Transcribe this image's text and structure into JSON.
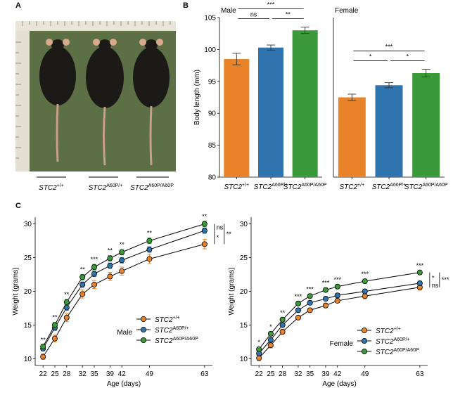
{
  "panels": {
    "a": "A",
    "b": "B",
    "c": "C"
  },
  "panel_a": {
    "description_labels": [
      "STC2+/+",
      "STC2A60P/+",
      "STC2A60P/A60P"
    ],
    "genotype_labels": [
      {
        "gene": "STC2",
        "sup": "+/+"
      },
      {
        "gene": "STC2",
        "sup": "A60P/+"
      },
      {
        "gene": "STC2",
        "sup": "A60P/A60P"
      }
    ],
    "colors": {
      "background": "#5c6f45",
      "fur": "#1c1a17",
      "tail": "#c9a08c",
      "ruler": "#e8e4d8"
    }
  },
  "colors": {
    "wt": "#e8832a",
    "het": "#2f74ad",
    "hom": "#3a9a3a",
    "axis": "#000000"
  },
  "chart_data": [
    {
      "id": "B-male",
      "type": "bar",
      "title": "Male",
      "ylabel": "Body length (mm)",
      "ylim": [
        80,
        105
      ],
      "yticks": [
        80,
        85,
        90,
        95,
        100,
        105
      ],
      "categories": [
        {
          "gene": "STC2",
          "sup": "+/+"
        },
        {
          "gene": "STC2",
          "sup": "A60P/+"
        },
        {
          "gene": "STC2",
          "sup": "A60P/A60P"
        }
      ],
      "values": [
        98.5,
        100.3,
        103.0
      ],
      "errors": [
        0.9,
        0.4,
        0.5
      ],
      "significance": [
        {
          "from": 0,
          "to": 1,
          "label": "ns",
          "level": 1
        },
        {
          "from": 1,
          "to": 2,
          "label": "**",
          "level": 1
        },
        {
          "from": 0,
          "to": 2,
          "label": "***",
          "level": 2
        }
      ]
    },
    {
      "id": "B-female",
      "type": "bar",
      "title": "Female",
      "ylim": [
        80,
        105
      ],
      "categories": [
        {
          "gene": "STC2",
          "sup": "+/+"
        },
        {
          "gene": "STC2",
          "sup": "A60P/+"
        },
        {
          "gene": "STC2",
          "sup": "A60P/A60P"
        }
      ],
      "values": [
        92.5,
        94.4,
        96.3
      ],
      "errors": [
        0.5,
        0.4,
        0.6
      ],
      "significance": [
        {
          "from": 0,
          "to": 1,
          "label": "*",
          "level": 1
        },
        {
          "from": 1,
          "to": 2,
          "label": "*",
          "level": 1
        },
        {
          "from": 0,
          "to": 2,
          "label": "***",
          "level": 2
        }
      ]
    },
    {
      "id": "C-male",
      "type": "line",
      "xlabel": "Age (days)",
      "ylabel": "Weight (grams)",
      "x": [
        22,
        25,
        28,
        32,
        35,
        39,
        42,
        49,
        63
      ],
      "xlim": [
        20,
        65
      ],
      "ylim": [
        9,
        31
      ],
      "yticks": [
        10,
        15,
        20,
        25,
        30
      ],
      "legend_title": "Male",
      "series": [
        {
          "name": "STC2",
          "sup": "+/+",
          "values": [
            10.3,
            13.0,
            16.1,
            19.6,
            21.0,
            22.2,
            23.0,
            24.8,
            27.0
          ],
          "errors": [
            0.4,
            0.5,
            0.6,
            0.6,
            0.6,
            0.6,
            0.6,
            0.7,
            0.7
          ]
        },
        {
          "name": "STC2",
          "sup": "A60P/+",
          "values": [
            11.5,
            14.6,
            17.6,
            21.0,
            22.6,
            23.8,
            24.6,
            26.2,
            29.0
          ],
          "errors": [
            0.3,
            0.4,
            0.4,
            0.4,
            0.4,
            0.4,
            0.4,
            0.4,
            0.4
          ]
        },
        {
          "name": "STC2",
          "sup": "A60P/A60P",
          "values": [
            11.8,
            15.0,
            18.4,
            22.1,
            23.6,
            24.9,
            25.8,
            27.5,
            30.0
          ],
          "errors": [
            0.3,
            0.4,
            0.4,
            0.4,
            0.4,
            0.4,
            0.4,
            0.4,
            0.4
          ]
        }
      ],
      "point_labels": [
        "**",
        "**",
        "**",
        "**",
        "***",
        "**",
        "**",
        "**",
        "**"
      ],
      "brackets": [
        {
          "from": 2,
          "to": 1,
          "label": "ns",
          "level": 1
        },
        {
          "from": 1,
          "to": 0,
          "label": "*",
          "level": 1
        },
        {
          "from": 2,
          "to": 0,
          "label": "**",
          "level": 2
        }
      ]
    },
    {
      "id": "C-female",
      "type": "line",
      "xlabel": "Age (days)",
      "ylabel": "Weight (grams)",
      "x": [
        22,
        25,
        28,
        32,
        35,
        39,
        42,
        49,
        63
      ],
      "xlim": [
        20,
        65
      ],
      "ylim": [
        9,
        31
      ],
      "yticks": [
        10,
        15,
        20,
        25,
        30
      ],
      "legend_title": "Female",
      "series": [
        {
          "name": "STC2",
          "sup": "+/+",
          "values": [
            10.1,
            12.0,
            14.0,
            16.1,
            17.2,
            17.9,
            18.6,
            19.3,
            20.6
          ],
          "errors": [
            0.4,
            0.4,
            0.4,
            0.3,
            0.3,
            0.3,
            0.3,
            0.4,
            0.4
          ]
        },
        {
          "name": "STC2",
          "sup": "A60P/+",
          "values": [
            10.8,
            12.8,
            15.0,
            17.2,
            18.3,
            18.9,
            19.4,
            20.0,
            21.2
          ],
          "errors": [
            0.3,
            0.3,
            0.3,
            0.3,
            0.3,
            0.3,
            0.3,
            0.3,
            0.3
          ]
        },
        {
          "name": "STC2",
          "sup": "A60P/A60P",
          "values": [
            11.4,
            13.7,
            15.8,
            18.2,
            19.3,
            20.2,
            20.7,
            21.5,
            22.8
          ],
          "errors": [
            0.3,
            0.3,
            0.3,
            0.3,
            0.3,
            0.3,
            0.3,
            0.3,
            0.3
          ]
        }
      ],
      "point_labels": [
        "*",
        "*",
        "**",
        "***",
        "***",
        "***",
        "***",
        "***",
        "***"
      ],
      "brackets": [
        {
          "from": 2,
          "to": 1,
          "label": "*",
          "level": 1
        },
        {
          "from": 1,
          "to": 0,
          "label": "ns",
          "level": 1
        },
        {
          "from": 2,
          "to": 0,
          "label": "***",
          "level": 2
        }
      ]
    }
  ]
}
